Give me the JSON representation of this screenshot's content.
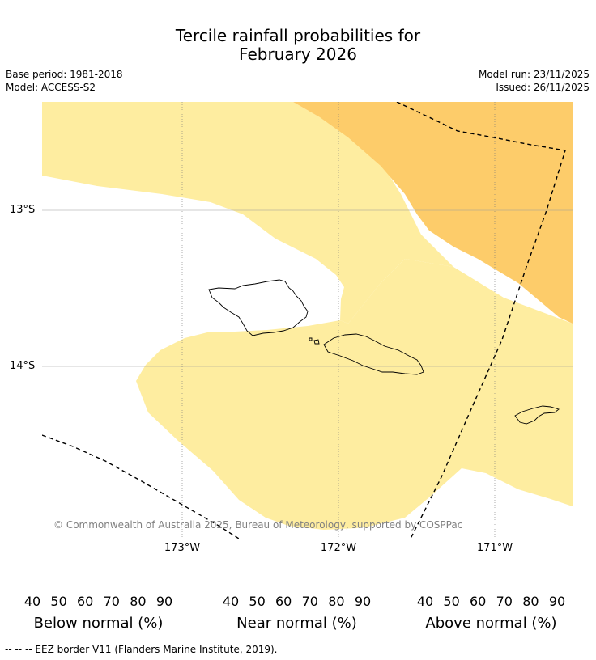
{
  "title_line1": "Tercile rainfall probabilities for",
  "title_line2": "February 2026",
  "meta": {
    "base_period": "Base period: 1981-2018",
    "model": "Model: ACCESS-S2",
    "model_run": "Model run: 23/11/2025",
    "issued": "Issued: 26/11/2025"
  },
  "map": {
    "lat_labels": [
      "13°S",
      "14°S"
    ],
    "lon_labels": [
      "173°W",
      "172°W",
      "171°W"
    ],
    "copyright": "© Commonwealth of Australia 2025, Bureau of Meteorology, supported by COSPPac",
    "colors": {
      "below_40_50": "#feeda0",
      "below_50_60": "#fdcc6a",
      "island_outline": "#000000",
      "eez_border": "#000000",
      "gridline": "#808080"
    }
  },
  "colorbars": [
    {
      "label": "Below normal (%)",
      "ticks": [
        "40",
        "50",
        "60",
        "70",
        "80",
        "90"
      ],
      "colors": [
        "#feeda0",
        "#fdcc6a",
        "#e0974a",
        "#cb6332",
        "#af4a26",
        "#8f3420"
      ]
    },
    {
      "label": "Near normal (%)",
      "ticks": [
        "40",
        "50",
        "60",
        "70",
        "80",
        "90"
      ],
      "colors": [
        "#e6e6e6",
        "#d6d6d6",
        "#c4c4c4",
        "#b3b3b3",
        "#a0a0a0",
        "#808080"
      ]
    },
    {
      "label": "Above normal (%)",
      "ticks": [
        "40",
        "50",
        "60",
        "70",
        "80",
        "90"
      ],
      "colors": [
        "#ccfacc",
        "#a2d6c1",
        "#7bb1af",
        "#5b9099",
        "#326a9b",
        "#154c86"
      ]
    }
  ],
  "footer": "--  --  -- EEZ border V11 (Flanders Marine Institute, 2019)."
}
